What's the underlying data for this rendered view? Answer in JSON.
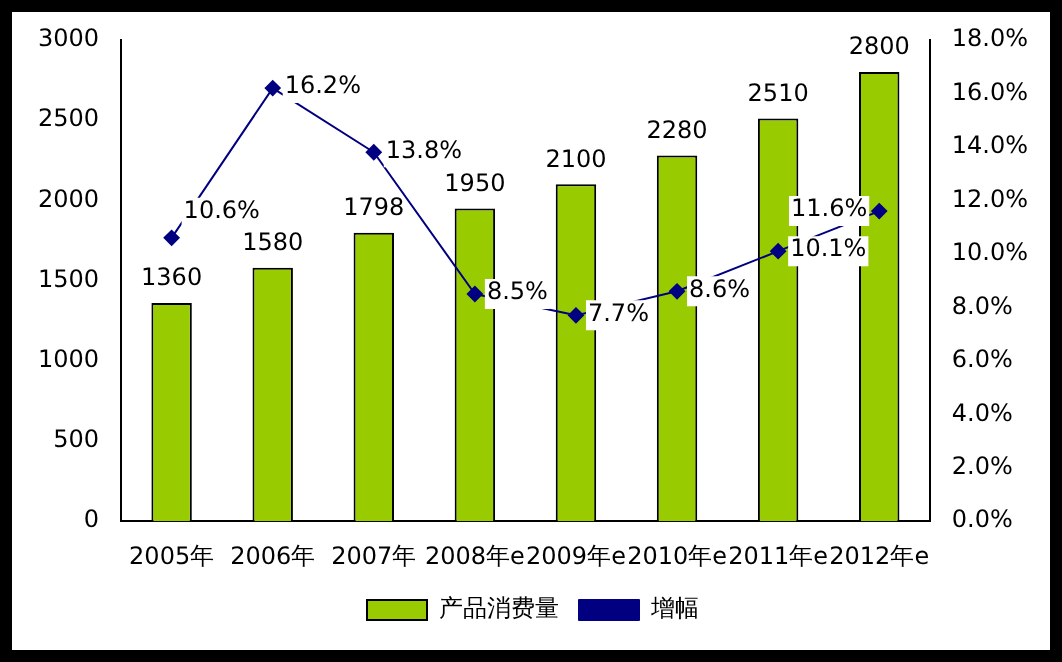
{
  "chart_data": {
    "type": "bar",
    "categories": [
      "2005年",
      "2006年",
      "2007年",
      "2008年e",
      "2009年e",
      "2010年e",
      "2011年e",
      "2012年e"
    ],
    "series": [
      {
        "name": "产品消费量",
        "color": "#99cc00",
        "values": [
          1360,
          1580,
          1798,
          1950,
          2100,
          2280,
          2510,
          2800
        ],
        "value_labels": [
          "1360",
          "1580",
          "1798",
          "1950",
          "2100",
          "2280",
          "2510",
          "2800"
        ]
      },
      {
        "name": "增幅",
        "type": "line",
        "axis": "y2",
        "color": "#000080",
        "marker": "diamond",
        "values": [
          10.6,
          16.2,
          13.8,
          8.5,
          7.7,
          8.6,
          10.1,
          11.6
        ],
        "value_labels": [
          "10.6%",
          "16.2%",
          "13.8%",
          "8.5%",
          "7.7%",
          "8.6%",
          "10.1%",
          "11.6%"
        ]
      }
    ],
    "ylim": [
      0,
      3000
    ],
    "yticks": [
      0,
      500,
      1000,
      1500,
      2000,
      2500,
      3000
    ],
    "y2lim": [
      0,
      18
    ],
    "y2ticks": [
      {
        "value": 0,
        "label": "0.0%"
      },
      {
        "value": 2,
        "label": "2.0%"
      },
      {
        "value": 4,
        "label": "4.0%"
      },
      {
        "value": 6,
        "label": "6.0%"
      },
      {
        "value": 8,
        "label": "8.0%"
      },
      {
        "value": 10,
        "label": "10.0%"
      },
      {
        "value": 12,
        "label": "12.0%"
      },
      {
        "value": 14,
        "label": "14.0%"
      },
      {
        "value": 16,
        "label": "16.0%"
      },
      {
        "value": 18,
        "label": "18.0%"
      }
    ],
    "grid": false,
    "legend": "bottom"
  }
}
